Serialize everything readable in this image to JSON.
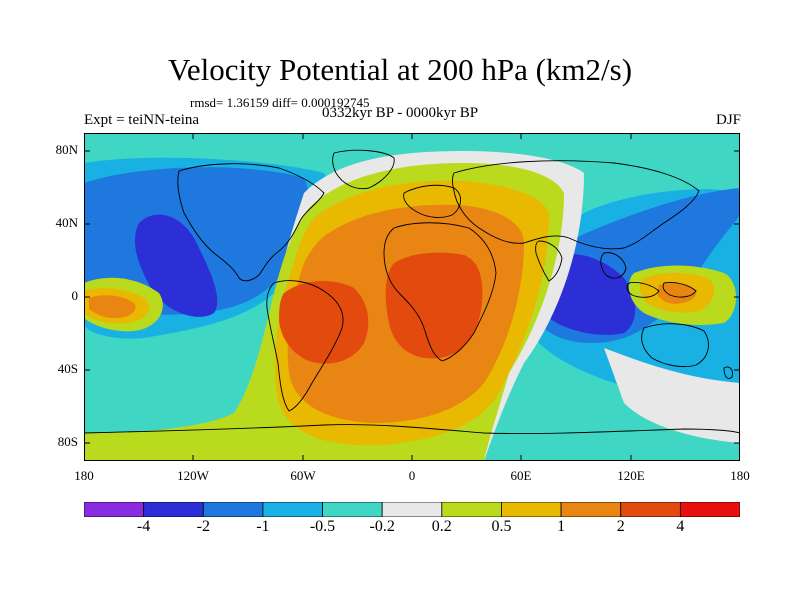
{
  "figure": {
    "title": "Velocity Potential at 200 hPa (km2/s)",
    "stats": "rmsd= 1.36159 diff= 0.000192745",
    "left_label": "Expt = teiNN-teina",
    "center_label": "0332kyr BP - 0000kyr BP",
    "right_label": "DJF"
  },
  "axes": {
    "lat_ticks": [
      "80N",
      "40N",
      "0",
      "40S",
      "80S"
    ],
    "lon_ticks": [
      "180",
      "120W",
      "60W",
      "0",
      "60E",
      "120E",
      "180"
    ]
  },
  "colorbar": {
    "labels": [
      "-4",
      "-2",
      "-1",
      "-0.5",
      "-0.2",
      "0.2",
      "0.5",
      "1",
      "2",
      "4"
    ],
    "colors": [
      "#8a2be2",
      "#2c2fd6",
      "#1f78dd",
      "#19b1e4",
      "#3fd6c4",
      "#e8e8e8",
      "#bada1d",
      "#e9b800",
      "#e98512",
      "#e24a0e",
      "#e80f0f"
    ]
  }
}
